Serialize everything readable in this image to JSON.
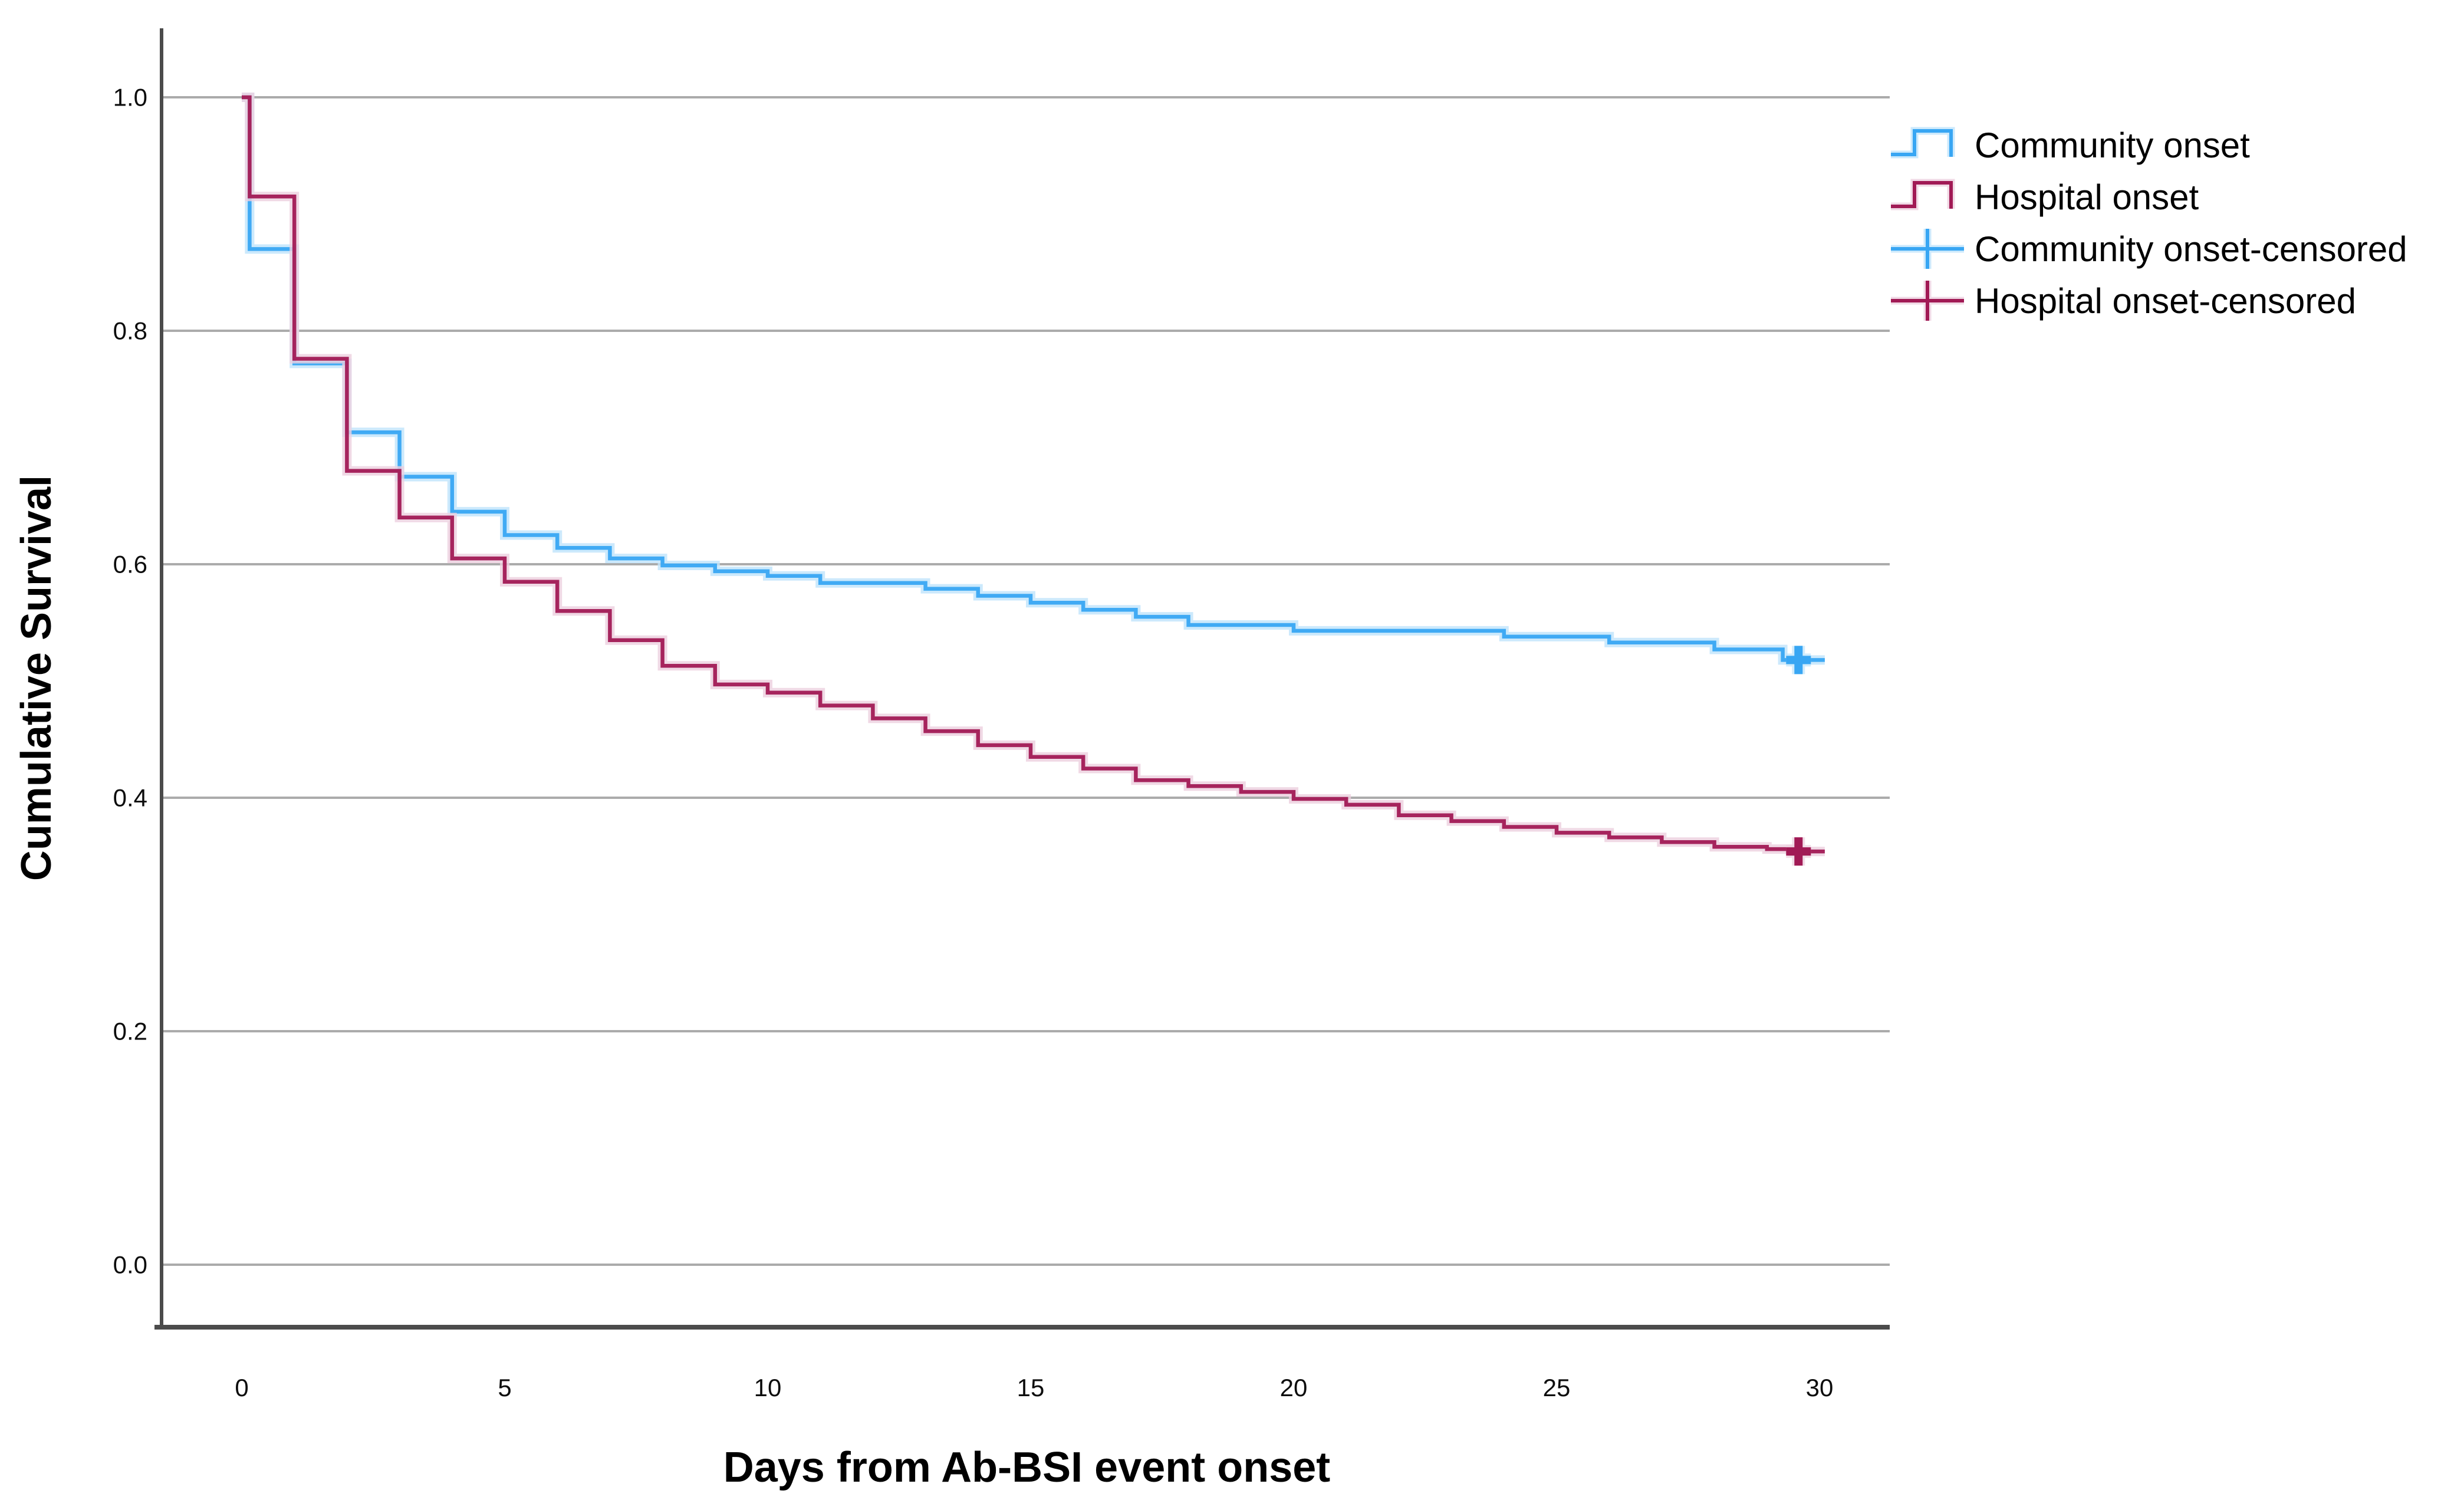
{
  "chart_data": {
    "type": "line",
    "subtype": "kaplan-meier-step",
    "title": "",
    "xlabel": "Days from Ab-BSI event onset",
    "ylabel": "Cumulative Survival",
    "x_ticks": [
      0,
      5,
      10,
      15,
      20,
      25,
      30
    ],
    "y_ticks": [
      1.0,
      0.8,
      0.6,
      0.4,
      0.2,
      0.0
    ],
    "xlim": [
      0,
      30
    ],
    "ylim": [
      0.0,
      1.0
    ],
    "grid": true,
    "legend_position": "right",
    "series": [
      {
        "name": "Community onset",
        "color": "#38a6f3",
        "halo_color": "#bfe4fb",
        "points": [
          [
            0,
            1.0
          ],
          [
            0.15,
            0.87
          ],
          [
            1,
            0.772
          ],
          [
            2,
            0.713
          ],
          [
            3,
            0.675
          ],
          [
            4,
            0.645
          ],
          [
            5,
            0.625
          ],
          [
            6,
            0.614
          ],
          [
            7,
            0.605
          ],
          [
            8,
            0.599
          ],
          [
            9,
            0.594
          ],
          [
            10,
            0.59
          ],
          [
            11,
            0.584
          ],
          [
            13,
            0.579
          ],
          [
            14,
            0.573
          ],
          [
            15,
            0.567
          ],
          [
            16,
            0.561
          ],
          [
            17,
            0.555
          ],
          [
            18,
            0.548
          ],
          [
            20,
            0.543
          ],
          [
            24,
            0.538
          ],
          [
            26,
            0.533
          ],
          [
            28,
            0.527
          ],
          [
            29.3,
            0.518
          ]
        ]
      },
      {
        "name": "Hospital onset",
        "color": "#a11a55",
        "halo_color": "#ecd0de",
        "points": [
          [
            0,
            1.0
          ],
          [
            0.15,
            0.915
          ],
          [
            1,
            0.776
          ],
          [
            2,
            0.68
          ],
          [
            3,
            0.64
          ],
          [
            4,
            0.605
          ],
          [
            5,
            0.585
          ],
          [
            6,
            0.56
          ],
          [
            7,
            0.535
          ],
          [
            8,
            0.513
          ],
          [
            9,
            0.497
          ],
          [
            10,
            0.49
          ],
          [
            11,
            0.479
          ],
          [
            12,
            0.468
          ],
          [
            13,
            0.457
          ],
          [
            14,
            0.445
          ],
          [
            15,
            0.435
          ],
          [
            16,
            0.425
          ],
          [
            17,
            0.415
          ],
          [
            18,
            0.41
          ],
          [
            19,
            0.405
          ],
          [
            20,
            0.399
          ],
          [
            21,
            0.394
          ],
          [
            22,
            0.385
          ],
          [
            23,
            0.38
          ],
          [
            24,
            0.375
          ],
          [
            25,
            0.37
          ],
          [
            26,
            0.366
          ],
          [
            27,
            0.362
          ],
          [
            28,
            0.358
          ],
          [
            29,
            0.356
          ],
          [
            29.5,
            0.354
          ]
        ]
      }
    ],
    "censor_marks": [
      {
        "series": "Community onset",
        "x": 29.6,
        "y": 0.518
      },
      {
        "series": "Hospital onset",
        "x": 29.6,
        "y": 0.354
      }
    ],
    "legend": [
      {
        "label": "Community onset",
        "key": "step-line",
        "color": "#38a6f3",
        "halo_color": "#bfe4fb"
      },
      {
        "label": "Hospital onset",
        "key": "step-line",
        "color": "#a11a55",
        "halo_color": "#ecd0de"
      },
      {
        "label": "Community onset-censored",
        "key": "censor-cross",
        "color": "#38a6f3",
        "halo_color": "#bfe4fb"
      },
      {
        "label": "Hospital onset-censored",
        "key": "censor-cross",
        "color": "#a11a55",
        "halo_color": "#ecd0de"
      }
    ],
    "style": {
      "gridline_color": "#ababab",
      "axis_line_color": "#4b4b4b",
      "text_color": "#000000",
      "background": "#ffffff"
    }
  }
}
